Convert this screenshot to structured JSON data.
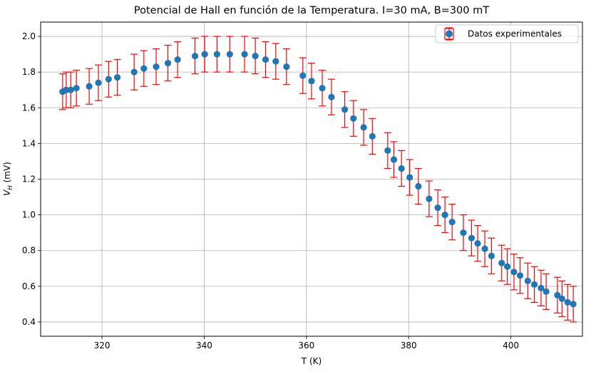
{
  "chart_data": {
    "type": "scatter",
    "title": "Potencial de Hall en función de la Temperatura. I=30 mA, B=300 mT",
    "xlabel": "T (K)",
    "ylabel_main": "V",
    "ylabel_sub": "H",
    "ylabel_unit": " (mV)",
    "xlim": [
      308,
      414
    ],
    "ylim": [
      0.32,
      2.08
    ],
    "xticks": [
      320,
      340,
      360,
      380,
      400
    ],
    "yticks": [
      0.4,
      0.6,
      0.8,
      1.0,
      1.2,
      1.4,
      1.6,
      1.8,
      2.0
    ],
    "xtick_labels": [
      "320",
      "340",
      "360",
      "380",
      "400"
    ],
    "ytick_labels": [
      "0.4",
      "0.6",
      "0.8",
      "1.0",
      "1.2",
      "1.4",
      "1.6",
      "1.8",
      "2.0"
    ],
    "grid": true,
    "legend_position": "top-right",
    "series": [
      {
        "name": "Datos experimentales",
        "marker_color": "#1f77b4",
        "error_color": "#ff0000",
        "yerr": 0.1,
        "x": [
          312.3,
          313.0,
          313.9,
          315.0,
          317.5,
          319.3,
          321.3,
          323.0,
          326.3,
          328.2,
          330.6,
          332.9,
          334.8,
          338.2,
          340.1,
          342.5,
          345.0,
          347.9,
          350.0,
          352.0,
          354.0,
          356.1,
          359.3,
          361.0,
          363.1,
          364.9,
          367.5,
          369.2,
          371.2,
          372.9,
          375.9,
          377.1,
          378.6,
          380.2,
          381.9,
          384.0,
          385.7,
          387.1,
          388.5,
          390.7,
          392.3,
          393.5,
          394.9,
          396.2,
          398.2,
          399.3,
          400.6,
          401.8,
          403.3,
          404.6,
          405.9,
          406.9,
          409.1,
          410.0,
          411.1,
          412.2
        ],
        "y": [
          1.69,
          1.7,
          1.7,
          1.71,
          1.72,
          1.74,
          1.76,
          1.77,
          1.8,
          1.82,
          1.83,
          1.85,
          1.87,
          1.89,
          1.9,
          1.9,
          1.9,
          1.9,
          1.89,
          1.87,
          1.86,
          1.83,
          1.78,
          1.75,
          1.71,
          1.66,
          1.59,
          1.54,
          1.49,
          1.44,
          1.36,
          1.31,
          1.26,
          1.21,
          1.16,
          1.09,
          1.04,
          1.0,
          0.96,
          0.9,
          0.87,
          0.84,
          0.81,
          0.77,
          0.73,
          0.71,
          0.68,
          0.66,
          0.63,
          0.61,
          0.59,
          0.57,
          0.55,
          0.53,
          0.51,
          0.5
        ]
      }
    ]
  }
}
